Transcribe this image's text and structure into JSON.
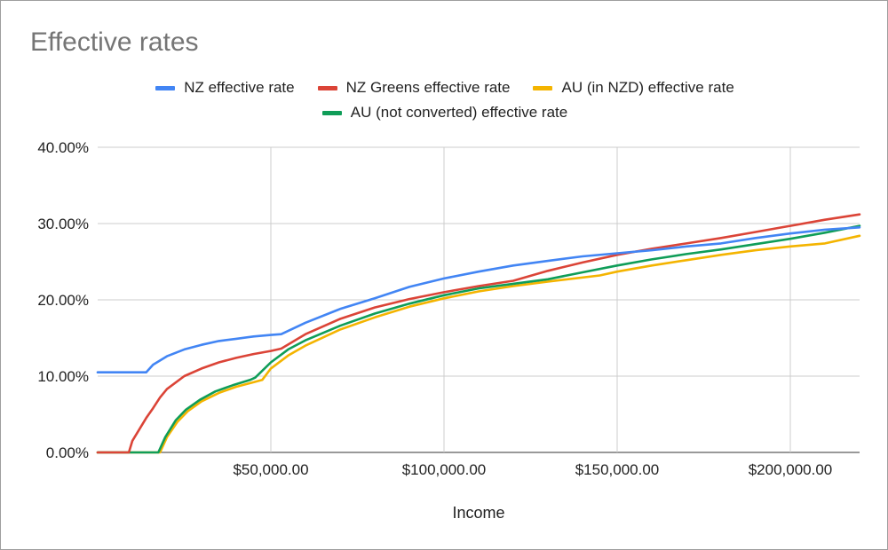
{
  "chart_data": {
    "type": "line",
    "title": "Effective rates",
    "xlabel": "Income",
    "ylabel": "",
    "xlim": [
      0,
      220000
    ],
    "ylim": [
      0,
      40
    ],
    "x_ticks": [
      50000,
      100000,
      150000,
      200000
    ],
    "x_tick_labels": [
      "$50,000.00",
      "$100,000.00",
      "$150,000.00",
      "$200,000.00"
    ],
    "y_ticks": [
      0,
      10,
      20,
      30,
      40
    ],
    "y_tick_labels": [
      "0.00%",
      "10.00%",
      "20.00%",
      "30.00%",
      "40.00%"
    ],
    "grid": true,
    "legend_position": "top",
    "series": [
      {
        "name": "NZ effective rate",
        "color": "#4285F4",
        "points": [
          [
            0,
            10.5
          ],
          [
            14000,
            10.5
          ],
          [
            16000,
            11.5
          ],
          [
            20000,
            12.6
          ],
          [
            25000,
            13.5
          ],
          [
            30000,
            14.1
          ],
          [
            35000,
            14.6
          ],
          [
            40000,
            14.9
          ],
          [
            45000,
            15.2
          ],
          [
            50000,
            15.4
          ],
          [
            53000,
            15.5
          ],
          [
            60000,
            17.0
          ],
          [
            70000,
            18.8
          ],
          [
            80000,
            20.2
          ],
          [
            90000,
            21.7
          ],
          [
            100000,
            22.8
          ],
          [
            110000,
            23.7
          ],
          [
            120000,
            24.5
          ],
          [
            130000,
            25.1
          ],
          [
            140000,
            25.7
          ],
          [
            150000,
            26.1
          ],
          [
            160000,
            26.5
          ],
          [
            170000,
            27.0
          ],
          [
            180000,
            27.4
          ],
          [
            190000,
            28.1
          ],
          [
            200000,
            28.7
          ],
          [
            210000,
            29.2
          ],
          [
            220000,
            29.5
          ]
        ]
      },
      {
        "name": "NZ Greens effective rate",
        "color": "#DB4437",
        "points": [
          [
            0,
            0
          ],
          [
            9000,
            0
          ],
          [
            10000,
            1.5
          ],
          [
            12000,
            3
          ],
          [
            14000,
            4.5
          ],
          [
            16000,
            5.8
          ],
          [
            18000,
            7.2
          ],
          [
            20000,
            8.3
          ],
          [
            25000,
            10.0
          ],
          [
            30000,
            11.0
          ],
          [
            35000,
            11.8
          ],
          [
            40000,
            12.4
          ],
          [
            45000,
            12.9
          ],
          [
            50000,
            13.3
          ],
          [
            53000,
            13.6
          ],
          [
            60000,
            15.5
          ],
          [
            70000,
            17.5
          ],
          [
            80000,
            19.0
          ],
          [
            90000,
            20.1
          ],
          [
            100000,
            21.0
          ],
          [
            110000,
            21.8
          ],
          [
            120000,
            22.5
          ],
          [
            130000,
            23.8
          ],
          [
            140000,
            24.9
          ],
          [
            150000,
            25.9
          ],
          [
            160000,
            26.7
          ],
          [
            170000,
            27.4
          ],
          [
            180000,
            28.1
          ],
          [
            190000,
            28.9
          ],
          [
            200000,
            29.7
          ],
          [
            210000,
            30.5
          ],
          [
            220000,
            31.2
          ]
        ]
      },
      {
        "name": "AU (in NZD) effective rate",
        "color": "#F4B400",
        "points": [
          [
            0,
            0
          ],
          [
            18000,
            0
          ],
          [
            20000,
            2.0
          ],
          [
            23000,
            4.0
          ],
          [
            26000,
            5.4
          ],
          [
            30000,
            6.7
          ],
          [
            35000,
            7.8
          ],
          [
            40000,
            8.6
          ],
          [
            45000,
            9.2
          ],
          [
            47500,
            9.5
          ],
          [
            50000,
            11.0
          ],
          [
            55000,
            12.7
          ],
          [
            60000,
            14.0
          ],
          [
            70000,
            16.1
          ],
          [
            80000,
            17.7
          ],
          [
            90000,
            19.1
          ],
          [
            100000,
            20.2
          ],
          [
            110000,
            21.1
          ],
          [
            120000,
            21.8
          ],
          [
            130000,
            22.4
          ],
          [
            145000,
            23.2
          ],
          [
            150000,
            23.7
          ],
          [
            160000,
            24.5
          ],
          [
            170000,
            25.2
          ],
          [
            180000,
            25.9
          ],
          [
            190000,
            26.5
          ],
          [
            200000,
            27.0
          ],
          [
            210000,
            27.4
          ],
          [
            220000,
            28.4
          ]
        ]
      },
      {
        "name": "AU (not converted) effective rate",
        "color": "#0F9D58",
        "points": [
          [
            0,
            0
          ],
          [
            17500,
            0
          ],
          [
            19500,
            2.0
          ],
          [
            22500,
            4.2
          ],
          [
            25500,
            5.6
          ],
          [
            29500,
            6.9
          ],
          [
            34000,
            8.0
          ],
          [
            39000,
            8.8
          ],
          [
            44000,
            9.5
          ],
          [
            45500,
            9.8
          ],
          [
            50000,
            11.8
          ],
          [
            55000,
            13.5
          ],
          [
            60000,
            14.7
          ],
          [
            70000,
            16.6
          ],
          [
            80000,
            18.2
          ],
          [
            90000,
            19.5
          ],
          [
            100000,
            20.6
          ],
          [
            110000,
            21.5
          ],
          [
            120000,
            22.1
          ],
          [
            130000,
            22.7
          ],
          [
            140000,
            23.6
          ],
          [
            150000,
            24.5
          ],
          [
            160000,
            25.3
          ],
          [
            170000,
            26.0
          ],
          [
            180000,
            26.6
          ],
          [
            190000,
            27.3
          ],
          [
            200000,
            28.0
          ],
          [
            210000,
            28.8
          ],
          [
            220000,
            29.7
          ]
        ]
      }
    ]
  }
}
